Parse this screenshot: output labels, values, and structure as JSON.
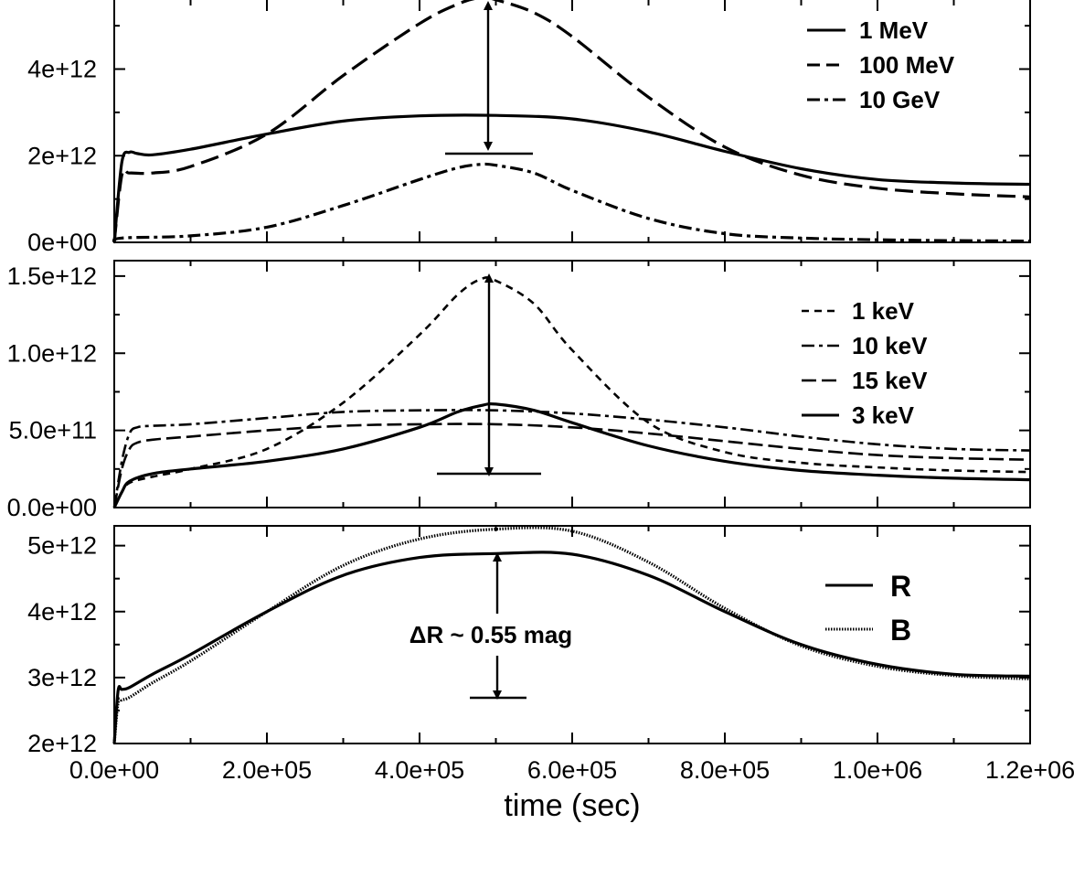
{
  "chart_data": [
    {
      "type": "line",
      "panel": "top",
      "x_range": [
        0,
        1200000
      ],
      "ylim": [
        0,
        5700000000000.0
      ],
      "y_ticks": [
        {
          "value": 0,
          "label": "0e+00"
        },
        {
          "value": 2000000000000.0,
          "label": "2e+12"
        },
        {
          "value": 4000000000000.0,
          "label": "4e+12"
        }
      ],
      "series": [
        {
          "name": "1 MeV",
          "style": "solid",
          "width": 3.2,
          "x": [
            0,
            10000,
            20000,
            30000,
            50000,
            100000,
            200000,
            300000,
            400000,
            500000,
            600000,
            700000,
            800000,
            900000,
            1000000,
            1100000,
            1200000
          ],
          "y": [
            0,
            1850000000000.0,
            2080000000000.0,
            2050000000000.0,
            2020000000000.0,
            2150000000000.0,
            2500000000000.0,
            2800000000000.0,
            2920000000000.0,
            2930000000000.0,
            2850000000000.0,
            2550000000000.0,
            2100000000000.0,
            1700000000000.0,
            1450000000000.0,
            1370000000000.0,
            1340000000000.0
          ]
        },
        {
          "name": "100 MeV",
          "style": "dash",
          "width": 3.2,
          "x": [
            0,
            10000,
            20000,
            50000,
            100000,
            200000,
            300000,
            400000,
            450000,
            480000,
            500000,
            550000,
            600000,
            700000,
            800000,
            900000,
            1000000,
            1100000,
            1200000
          ],
          "y": [
            0,
            1550000000000.0,
            1600000000000.0,
            1600000000000.0,
            1750000000000.0,
            2500000000000.0,
            3850000000000.0,
            5050000000000.0,
            5500000000000.0,
            5650000000000.0,
            5600000000000.0,
            5300000000000.0,
            4750000000000.0,
            3350000000000.0,
            2200000000000.0,
            1550000000000.0,
            1250000000000.0,
            1120000000000.0,
            1050000000000.0
          ]
        },
        {
          "name": "10 GeV",
          "style": "dashdot",
          "width": 3.2,
          "x": [
            0,
            10000,
            100000,
            200000,
            300000,
            400000,
            450000,
            480000,
            500000,
            550000,
            600000,
            700000,
            800000,
            900000,
            1000000,
            1100000,
            1200000
          ],
          "y": [
            0,
            100000000000.0,
            150000000000.0,
            350000000000.0,
            850000000000.0,
            1450000000000.0,
            1720000000000.0,
            1800000000000.0,
            1780000000000.0,
            1600000000000.0,
            1200000000000.0,
            550000000000.0,
            200000000000.0,
            100000000000.0,
            60000000000.0,
            40000000000.0,
            30000000000.0
          ]
        }
      ]
    },
    {
      "type": "line",
      "panel": "middle",
      "x_range": [
        0,
        1200000
      ],
      "ylim": [
        0,
        1600000000000.0
      ],
      "y_ticks": [
        {
          "value": 0,
          "label": "0.0e+00"
        },
        {
          "value": 500000000000.0,
          "label": "5.0e+11"
        },
        {
          "value": 1000000000000.0,
          "label": "1.0e+12"
        },
        {
          "value": 1500000000000.0,
          "label": "1.5e+12"
        }
      ],
      "series": [
        {
          "name": "1 keV",
          "style": "shortdash",
          "width": 2.6,
          "x": [
            0,
            10000,
            20000,
            50000,
            100000,
            200000,
            300000,
            400000,
            450000,
            480000,
            500000,
            550000,
            600000,
            700000,
            800000,
            900000,
            1000000,
            1100000,
            1200000
          ],
          "y": [
            0,
            100000000000.0,
            160000000000.0,
            200000000000.0,
            250000000000.0,
            380000000000.0,
            680000000000.0,
            1120000000000.0,
            1380000000000.0,
            1480000000000.0,
            1470000000000.0,
            1320000000000.0,
            1020000000000.0,
            550000000000.0,
            360000000000.0,
            290000000000.0,
            260000000000.0,
            240000000000.0,
            230000000000.0
          ]
        },
        {
          "name": "10 keV",
          "style": "dashdot",
          "width": 2.6,
          "x": [
            0,
            10000,
            20000,
            30000,
            50000,
            100000,
            200000,
            300000,
            400000,
            500000,
            600000,
            700000,
            800000,
            900000,
            1000000,
            1100000,
            1200000
          ],
          "y": [
            0,
            300000000000.0,
            480000000000.0,
            520000000000.0,
            530000000000.0,
            540000000000.0,
            580000000000.0,
            620000000000.0,
            630000000000.0,
            630000000000.0,
            610000000000.0,
            570000000000.0,
            520000000000.0,
            460000000000.0,
            410000000000.0,
            380000000000.0,
            370000000000.0
          ]
        },
        {
          "name": "15 keV",
          "style": "longdash",
          "width": 2.6,
          "x": [
            0,
            10000,
            20000,
            30000,
            50000,
            100000,
            200000,
            300000,
            400000,
            500000,
            600000,
            700000,
            800000,
            900000,
            1000000,
            1100000,
            1200000
          ],
          "y": [
            0,
            250000000000.0,
            380000000000.0,
            420000000000.0,
            440000000000.0,
            460000000000.0,
            500000000000.0,
            530000000000.0,
            540000000000.0,
            540000000000.0,
            520000000000.0,
            480000000000.0,
            430000000000.0,
            380000000000.0,
            340000000000.0,
            320000000000.0,
            310000000000.0
          ]
        },
        {
          "name": "3 keV",
          "style": "solid",
          "width": 3.2,
          "x": [
            0,
            10000,
            20000,
            50000,
            100000,
            200000,
            300000,
            400000,
            450000,
            480000,
            500000,
            550000,
            600000,
            700000,
            800000,
            900000,
            1000000,
            1100000,
            1200000
          ],
          "y": [
            0,
            100000000000.0,
            170000000000.0,
            220000000000.0,
            250000000000.0,
            300000000000.0,
            380000000000.0,
            520000000000.0,
            620000000000.0,
            660000000000.0,
            670000000000.0,
            630000000000.0,
            550000000000.0,
            400000000000.0,
            300000000000.0,
            240000000000.0,
            210000000000.0,
            190000000000.0,
            180000000000.0
          ]
        }
      ]
    },
    {
      "type": "line",
      "panel": "bottom",
      "x_range": [
        0,
        1200000
      ],
      "ylim": [
        2000000000000.0,
        5300000000000.0
      ],
      "y_ticks": [
        {
          "value": 2000000000000.0,
          "label": "2e+12"
        },
        {
          "value": 3000000000000.0,
          "label": "3e+12"
        },
        {
          "value": 4000000000000.0,
          "label": "4e+12"
        },
        {
          "value": 5000000000000.0,
          "label": "5e+12"
        }
      ],
      "x_ticks": [
        {
          "value": 0,
          "label": "0.0e+00"
        },
        {
          "value": 200000,
          "label": "2.0e+05"
        },
        {
          "value": 400000,
          "label": "4.0e+05"
        },
        {
          "value": 600000,
          "label": "6.0e+05"
        },
        {
          "value": 800000,
          "label": "8.0e+05"
        },
        {
          "value": 1000000,
          "label": "1.0e+06"
        },
        {
          "value": 1200000,
          "label": "1.2e+06"
        }
      ],
      "xlabel": "time (sec)",
      "series": [
        {
          "name": "R",
          "style": "solid",
          "width": 3.2,
          "x": [
            0,
            5000,
            10000,
            20000,
            50000,
            100000,
            200000,
            300000,
            400000,
            500000,
            600000,
            700000,
            800000,
            900000,
            1000000,
            1100000,
            1200000
          ],
          "y": [
            2000000000000.0,
            2800000000000.0,
            2820000000000.0,
            2850000000000.0,
            3050000000000.0,
            3350000000000.0,
            4000000000000.0,
            4550000000000.0,
            4820000000000.0,
            4880000000000.0,
            4870000000000.0,
            4550000000000.0,
            4000000000000.0,
            3500000000000.0,
            3200000000000.0,
            3050000000000.0,
            3020000000000.0
          ]
        },
        {
          "name": "B",
          "style": "dotted",
          "width": 3.2,
          "x": [
            0,
            5000,
            10000,
            20000,
            50000,
            100000,
            200000,
            300000,
            400000,
            500000,
            600000,
            700000,
            800000,
            900000,
            1000000,
            1100000,
            1200000
          ],
          "y": [
            2000000000000.0,
            2620000000000.0,
            2660000000000.0,
            2700000000000.0,
            2920000000000.0,
            3250000000000.0,
            4000000000000.0,
            4700000000000.0,
            5100000000000.0,
            5250000000000.0,
            5220000000000.0,
            4750000000000.0,
            4050000000000.0,
            3480000000000.0,
            3170000000000.0,
            3030000000000.0,
            2980000000000.0
          ]
        }
      ],
      "annotation": {
        "text": "ΔR ~ 0.55 mag"
      }
    }
  ]
}
